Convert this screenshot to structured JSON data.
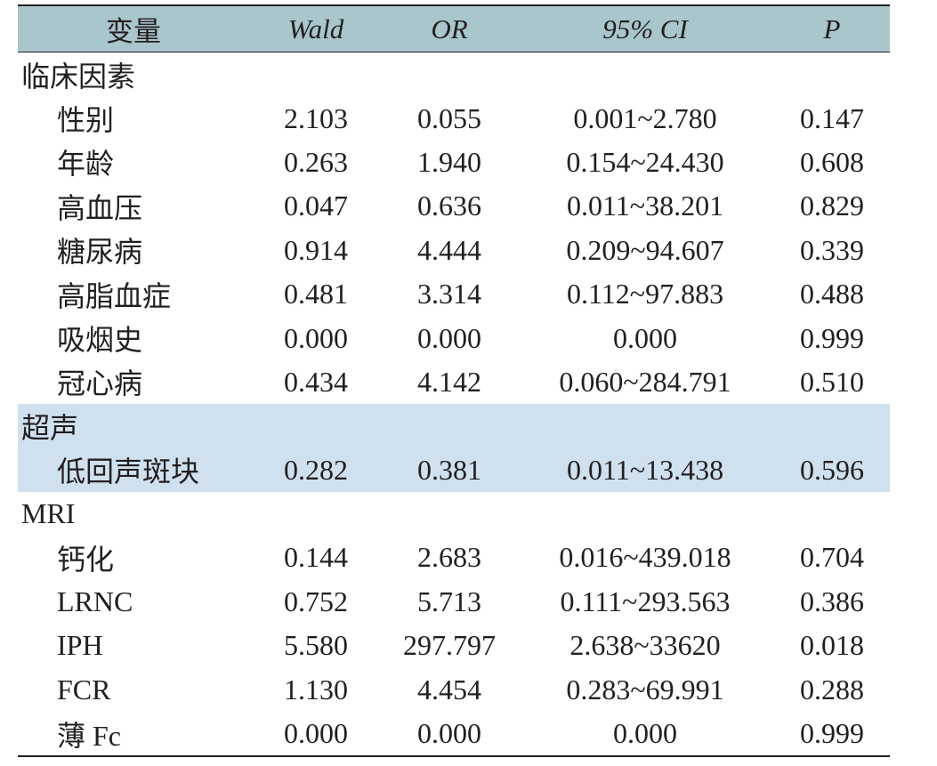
{
  "table": {
    "header": [
      "变量",
      "Wald",
      "OR",
      "95% CI",
      "P"
    ],
    "sections": [
      {
        "title": "临床因素",
        "shaded": false,
        "rows": [
          [
            "性别",
            "2.103",
            "0.055",
            "0.001~2.780",
            "0.147"
          ],
          [
            "年龄",
            "0.263",
            "1.940",
            "0.154~24.430",
            "0.608"
          ],
          [
            "高血压",
            "0.047",
            "0.636",
            "0.011~38.201",
            "0.829"
          ],
          [
            "糖尿病",
            "0.914",
            "4.444",
            "0.209~94.607",
            "0.339"
          ],
          [
            "高脂血症",
            "0.481",
            "3.314",
            "0.112~97.883",
            "0.488"
          ],
          [
            "吸烟史",
            "0.000",
            "0.000",
            "0.000",
            "0.999"
          ],
          [
            "冠心病",
            "0.434",
            "4.142",
            "0.060~284.791",
            "0.510"
          ]
        ]
      },
      {
        "title": "超声",
        "shaded": true,
        "rows": [
          [
            "低回声斑块",
            "0.282",
            "0.381",
            "0.011~13.438",
            "0.596"
          ]
        ]
      },
      {
        "title": "MRI",
        "shaded": false,
        "rows": [
          [
            "钙化",
            "0.144",
            "2.683",
            "0.016~439.018",
            "0.704"
          ],
          [
            "LRNC",
            "0.752",
            "5.713",
            "0.111~293.563",
            "0.386"
          ],
          [
            "IPH",
            "5.580",
            "297.797",
            "2.638~33620",
            "0.018"
          ],
          [
            "FCR",
            "1.130",
            "4.454",
            "0.283~69.991",
            "0.288"
          ],
          [
            "薄 Fc",
            "0.000",
            "0.000",
            "0.000",
            "0.999"
          ]
        ]
      }
    ]
  },
  "colors": {
    "header_bg": "#a9c6cd",
    "shaded_bg": "#cfe1ef",
    "text": "#231f20"
  }
}
